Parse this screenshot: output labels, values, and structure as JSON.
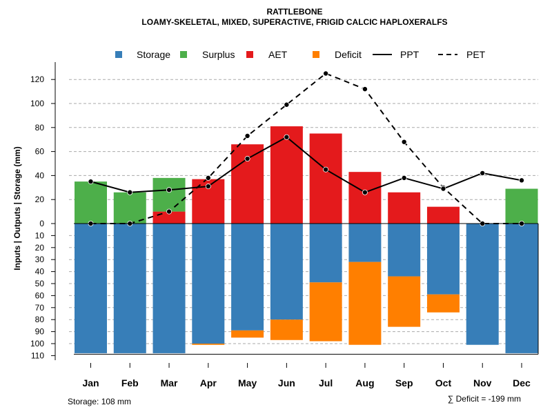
{
  "chart_data": {
    "type": "bar",
    "title": "RATTLEBONE",
    "subtitle": "LOAMY-SKELETAL, MIXED, SUPERACTIVE, FRIGID CALCIC HAPLOXERALFS",
    "ylabel": "Inputs | Outputs | Storage    (mm)",
    "ylim_top": [
      0,
      130
    ],
    "ylim_bottom": [
      0,
      110
    ],
    "yticks_top": [
      "120",
      "100",
      "80",
      "60",
      "40",
      "20",
      "0"
    ],
    "yticks_bottom": [
      "10",
      "20",
      "30",
      "40",
      "50",
      "60",
      "70",
      "80",
      "90",
      "100",
      "110"
    ],
    "categories": [
      "Jan",
      "Feb",
      "Mar",
      "Apr",
      "May",
      "Jun",
      "Jul",
      "Aug",
      "Sep",
      "Oct",
      "Nov",
      "Dec"
    ],
    "series": [
      {
        "name": "Storage",
        "color": "#377EB8",
        "values": [
          108,
          108,
          108,
          100,
          89,
          80,
          49,
          32,
          44,
          59,
          101,
          108
        ]
      },
      {
        "name": "Surplus",
        "color": "#4DAF4A",
        "values": [
          35,
          26,
          28,
          0,
          0,
          0,
          0,
          0,
          0,
          0,
          0,
          29
        ]
      },
      {
        "name": "AET",
        "color": "#E41A1C",
        "values": [
          0,
          0,
          10,
          37,
          66,
          81,
          75,
          43,
          26,
          14,
          0,
          0
        ]
      },
      {
        "name": "Deficit",
        "color": "#FF7F00",
        "values": [
          0,
          0,
          0,
          1,
          6,
          17,
          49,
          69,
          42,
          15,
          0,
          0
        ]
      },
      {
        "name": "PPT",
        "color": "#000000",
        "line": "solid",
        "values": [
          35,
          26,
          28,
          31,
          54,
          72,
          45,
          26,
          38,
          29,
          42,
          36
        ]
      },
      {
        "name": "PET",
        "color": "#000000",
        "line": "dashed",
        "values": [
          0,
          0,
          10,
          38,
          73,
          99,
          125,
          112,
          68,
          30,
          0,
          0
        ]
      }
    ],
    "legend": [
      "Storage",
      "Surplus",
      "AET",
      "Deficit",
      "PPT",
      "PET"
    ],
    "grid": true,
    "storage_note": "Storage: 108 mm",
    "deficit_note": "∑ Deficit = -199 mm"
  }
}
